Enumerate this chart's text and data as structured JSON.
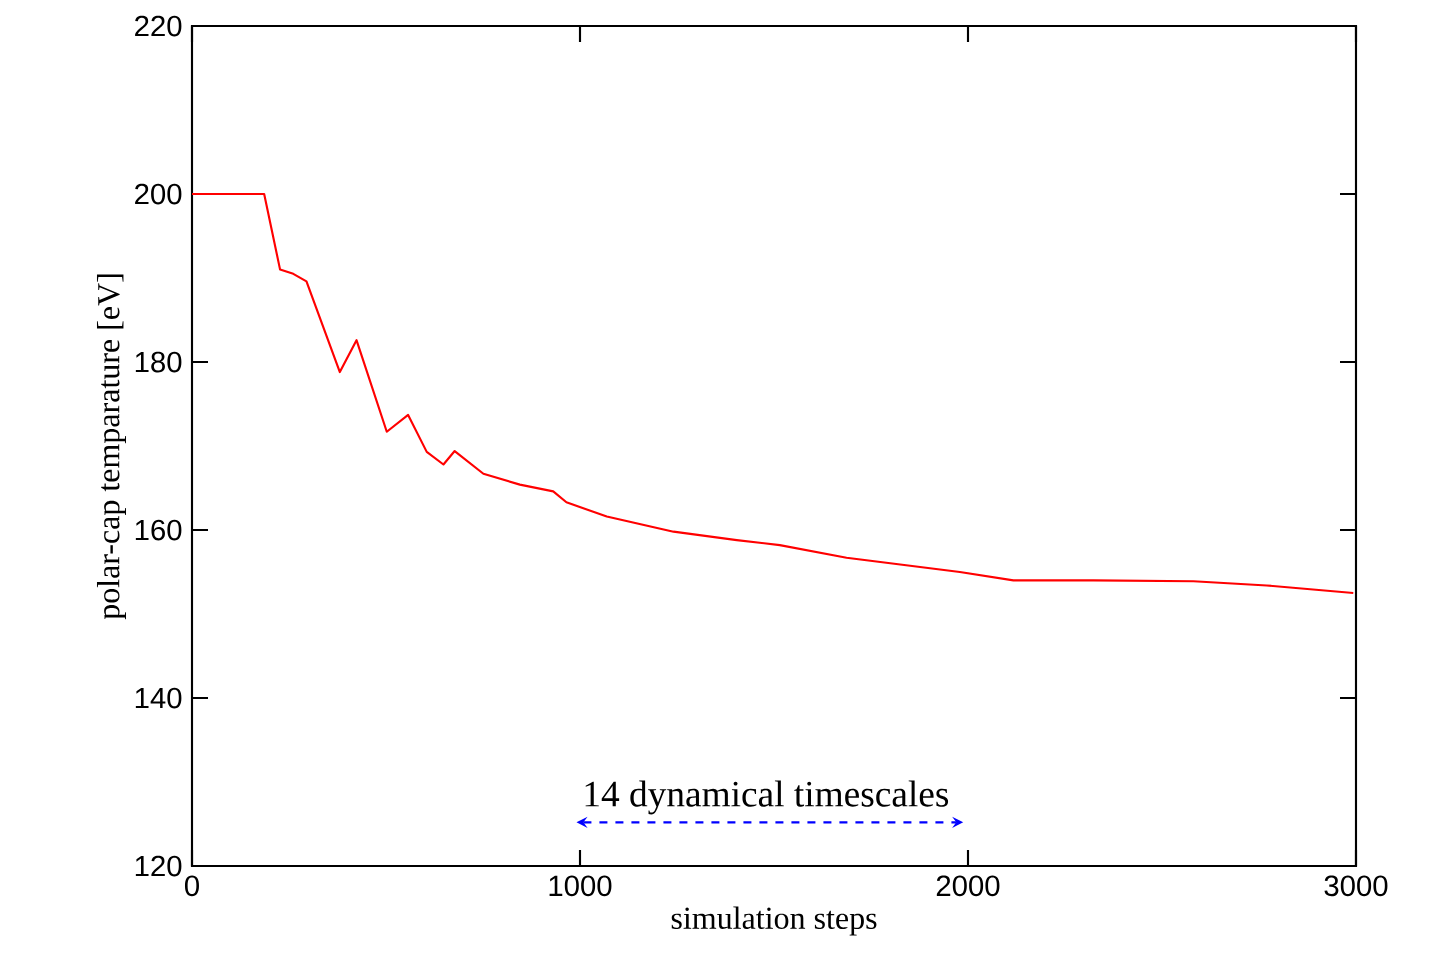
{
  "chart_data": {
    "type": "line",
    "xlabel": "simulation steps",
    "ylabel": "polar-cap temparature [eV]",
    "xlim": [
      0,
      3000
    ],
    "ylim": [
      120,
      220
    ],
    "xticks": [
      0,
      1000,
      2000,
      3000
    ],
    "yticks": [
      120,
      140,
      160,
      180,
      200,
      220
    ],
    "grid": false,
    "series": [
      {
        "color": "#ff0000",
        "x": [
          0,
          186,
          227,
          261,
          295,
          381,
          424,
          502,
          557,
          605,
          648,
          677,
          751,
          845,
          931,
          965,
          1069,
          1241,
          1404,
          1515,
          1687,
          1979,
          2117,
          2323,
          2581,
          2770,
          2993
        ],
        "values": [
          200,
          200,
          191.0,
          190.5,
          189.6,
          178.8,
          182.6,
          171.7,
          173.7,
          169.3,
          167.8,
          169.4,
          166.7,
          165.4,
          164.6,
          163.3,
          161.6,
          159.8,
          158.8,
          158.2,
          156.7,
          155.0,
          154.0,
          154.0,
          153.9,
          153.4,
          152.5
        ]
      }
    ],
    "annotations": [
      "14 dynamical timescales"
    ]
  }
}
